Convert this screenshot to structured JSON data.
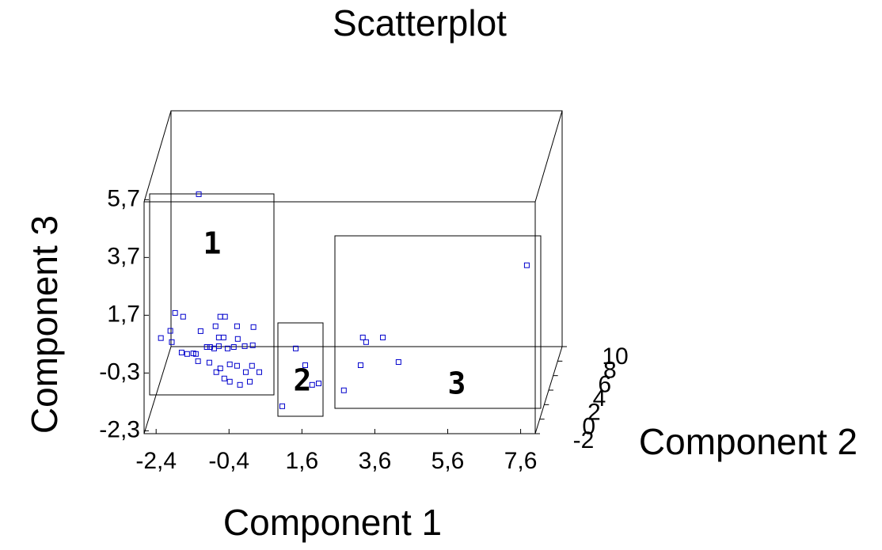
{
  "chart_data": {
    "type": "scatter",
    "title": "Scatterplot",
    "x_label": "Component 1",
    "y_label": "Component 3",
    "z_label": "Component 2",
    "color": "#0000cc",
    "x": [
      -1.23,
      -1.88,
      -1.66,
      -2.01,
      -2.27,
      -1.18,
      -0.64,
      -0.51,
      -0.77,
      -0.18,
      0.27,
      -1.97,
      -1.7,
      -1.55,
      -1.38,
      -1.31,
      -1.01,
      -0.92,
      -0.81,
      -0.68,
      -0.55,
      -0.68,
      -0.44,
      -0.27,
      -0.16,
      0.03,
      0.25,
      -1.25,
      -0.94,
      -0.64,
      -0.38,
      -0.18,
      0.23,
      0.43,
      -0.53,
      -0.38,
      -0.1,
      0.17,
      0.06,
      -0.75,
      1.43,
      1.69,
      2.06,
      1.88,
      1.06,
      3.27,
      3.36,
      3.82,
      3.21,
      4.25,
      2.75,
      7.77
    ],
    "y": [
      5.89,
      1.78,
      1.65,
      1.16,
      0.91,
      1.15,
      1.65,
      1.65,
      1.32,
      1.32,
      1.29,
      0.77,
      0.41,
      0.36,
      0.38,
      0.36,
      0.6,
      0.6,
      0.55,
      0.63,
      0.93,
      0.93,
      0.55,
      0.6,
      0.88,
      0.63,
      0.66,
      0.11,
      0.06,
      -0.14,
      0.0,
      -0.05,
      -0.05,
      -0.27,
      -0.49,
      -0.6,
      -0.71,
      -0.6,
      -0.27,
      -0.27,
      0.55,
      -0.03,
      -0.66,
      -0.71,
      -1.45,
      0.93,
      0.77,
      0.93,
      -0.03,
      0.08,
      -0.9,
      3.43
    ],
    "xlim": [
      -2.73,
      8.0
    ],
    "xticks": [
      {
        "value": -2.4,
        "label": "-2,4"
      },
      {
        "value": -0.4,
        "label": "-0,4"
      },
      {
        "value": 1.6,
        "label": "1,6"
      },
      {
        "value": 3.6,
        "label": "3,6"
      },
      {
        "value": 5.6,
        "label": "5,6"
      },
      {
        "value": 7.6,
        "label": "7,6"
      }
    ],
    "ylim": [
      -2.4,
      6.0
    ],
    "yticks": [
      {
        "value": -2.3,
        "label": "-2,3"
      },
      {
        "value": -0.3,
        "label": "-0,3"
      },
      {
        "value": 1.7,
        "label": "1,7"
      },
      {
        "value": 3.7,
        "label": "3,7"
      },
      {
        "value": 5.7,
        "label": "5,7"
      }
    ],
    "zlim": [
      -2,
      10
    ],
    "zticks": [
      -2,
      0,
      2,
      4,
      6,
      8,
      10
    ],
    "annotations": [
      "1",
      "2",
      "3"
    ]
  }
}
